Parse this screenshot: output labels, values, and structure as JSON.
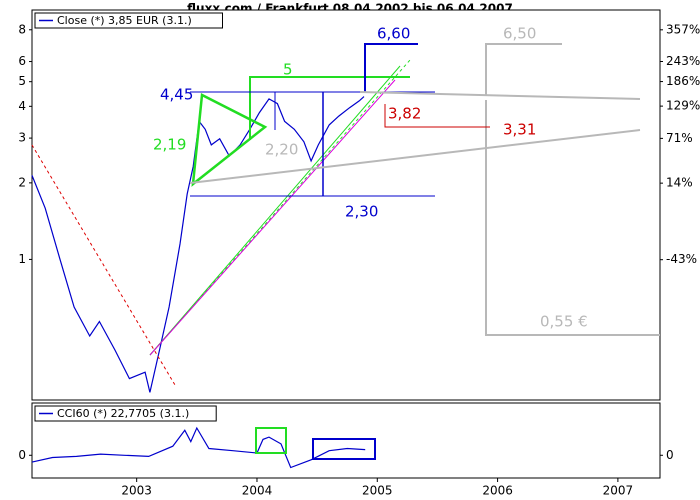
{
  "chart_data": [
    {
      "type": "line",
      "title": "fluxx.com / Frankfurt 08.04.2002 bis 06.04.2007",
      "x": [
        2002.13,
        2002.24,
        2002.36,
        2002.48,
        2002.61,
        2002.69,
        2002.82,
        2002.94,
        2003.07,
        2003.11,
        2003.19,
        2003.27,
        2003.36,
        2003.42,
        2003.47,
        2003.52,
        2003.57,
        2003.62,
        2003.69,
        2003.77,
        2003.86,
        2003.94,
        2004.02,
        2004.1,
        2004.17,
        2004.23,
        2004.31,
        2004.39,
        2004.45,
        2004.51,
        2004.6,
        2004.68,
        2004.77,
        2004.85,
        2004.89
      ],
      "series": [
        {
          "name": "Close (*) 3,85 EUR (3.1.)",
          "color": "#0000cc",
          "values": [
            2.14,
            1.59,
            1.01,
            0.65,
            0.5,
            0.57,
            0.44,
            0.34,
            0.36,
            0.3,
            0.44,
            0.65,
            1.15,
            1.81,
            2.32,
            3.49,
            3.25,
            2.82,
            2.98,
            2.55,
            2.82,
            3.25,
            3.78,
            4.28,
            4.1,
            3.49,
            3.25,
            2.9,
            2.44,
            2.82,
            3.38,
            3.66,
            3.95,
            4.2,
            4.37
          ]
        }
      ],
      "xlim": [
        2002.13,
        2007.35
      ],
      "ylim": [
        0.28,
        8.9
      ],
      "log_scale": true,
      "yticks": [
        1,
        2,
        3,
        4,
        5,
        6,
        8
      ],
      "y2lim": [
        -84,
        408.6
      ],
      "y2ticks": [
        {
          "value": 357,
          "label": "357%"
        },
        {
          "value": 243,
          "label": "243%"
        },
        {
          "value": 186,
          "label": "186%"
        },
        {
          "value": 129,
          "label": "129%"
        },
        {
          "value": 71,
          "label": "71%"
        },
        {
          "value": 14,
          "label": "14%"
        },
        {
          "value": -43,
          "label": "-43%"
        }
      ],
      "annotations": [
        {
          "text": "6,60"
        },
        {
          "text": "5"
        },
        {
          "text": "4,45"
        },
        {
          "text": "2,19"
        },
        {
          "text": "2,20"
        },
        {
          "text": "3,82"
        },
        {
          "text": "3,31"
        },
        {
          "text": "2,30"
        },
        {
          "text": "6,50"
        },
        {
          "text": "0,55 €"
        }
      ]
    },
    {
      "type": "line",
      "x": [
        2002.13,
        2002.3,
        2002.5,
        2002.7,
        2002.9,
        2003.1,
        2003.3,
        2003.4,
        2003.45,
        2003.5,
        2003.6,
        2003.8,
        2004.0,
        2004.05,
        2004.1,
        2004.2,
        2004.28,
        2004.45,
        2004.6,
        2004.75,
        2004.9
      ],
      "series": [
        {
          "name": "CCI60 (*) 22,7705 (3.1.)",
          "color": "#0000cc",
          "values": [
            -30,
            -10,
            -5,
            5,
            0,
            -5,
            40,
            110,
            60,
            120,
            30,
            20,
            10,
            70,
            80,
            50,
            -54,
            -20,
            20,
            30,
            25
          ]
        }
      ],
      "xlim": [
        2002.13,
        2007.35
      ],
      "xticks": [
        2003,
        2004,
        2005,
        2006,
        2007
      ],
      "ylim": [
        -100,
        230
      ],
      "yticks": [
        0
      ],
      "y2lim": [
        -100,
        230
      ],
      "y2ticks": [
        0
      ]
    }
  ]
}
